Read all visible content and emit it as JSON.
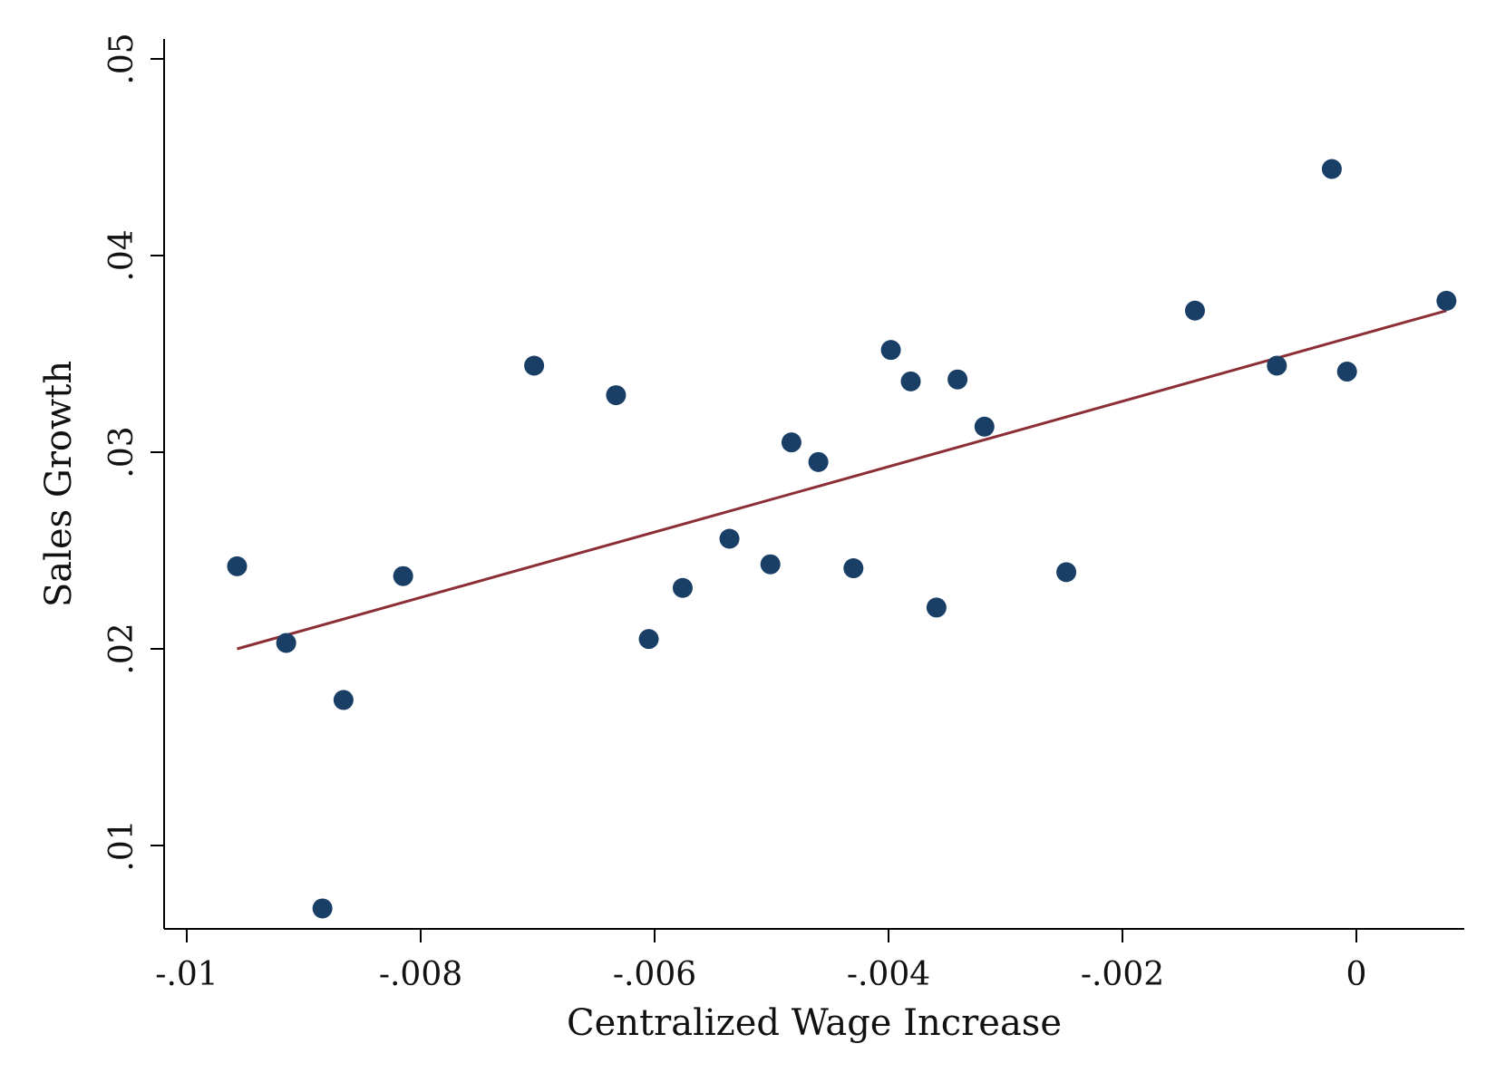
{
  "chart_data": {
    "type": "scatter",
    "title": "",
    "xlabel": "Centralized Wage Increase",
    "ylabel": "Sales Growth",
    "xlim": [
      -0.0105,
      0.0048
    ],
    "ylim": [
      0.0055,
      0.051
    ],
    "xticks": [
      -0.01,
      -0.008,
      -0.006,
      -0.004,
      -0.002,
      0
    ],
    "xtick_labels": [
      "-.01",
      "-.008",
      "-.006",
      "-.004",
      "-.002",
      "0"
    ],
    "yticks": [
      0.01,
      0.02,
      0.03,
      0.04,
      0.05
    ],
    "ytick_labels": [
      ".01",
      ".02",
      ".03",
      ".04",
      ".05"
    ],
    "grid": false,
    "legend": "none",
    "marker_color": "#1a3f66",
    "fit_color": "#8b2e35",
    "points": [
      {
        "x": -0.00957,
        "y": 0.0242
      },
      {
        "x": -0.00915,
        "y": 0.0203
      },
      {
        "x": -0.00884,
        "y": 0.0068
      },
      {
        "x": -0.00866,
        "y": 0.0174
      },
      {
        "x": -0.00815,
        "y": 0.0237
      },
      {
        "x": -0.00703,
        "y": 0.0344
      },
      {
        "x": -0.00633,
        "y": 0.0329
      },
      {
        "x": -0.00605,
        "y": 0.0205
      },
      {
        "x": -0.00576,
        "y": 0.0231
      },
      {
        "x": -0.00536,
        "y": 0.0256
      },
      {
        "x": -0.00501,
        "y": 0.0243
      },
      {
        "x": -0.00483,
        "y": 0.0305
      },
      {
        "x": -0.0046,
        "y": 0.0295
      },
      {
        "x": -0.0043,
        "y": 0.0241
      },
      {
        "x": -0.00398,
        "y": 0.0352
      },
      {
        "x": -0.00381,
        "y": 0.0336
      },
      {
        "x": -0.00359,
        "y": 0.0221
      },
      {
        "x": -0.00341,
        "y": 0.0337
      },
      {
        "x": -0.00318,
        "y": 0.0313
      },
      {
        "x": -0.00248,
        "y": 0.0239
      },
      {
        "x": -0.00138,
        "y": 0.0372
      },
      {
        "x": -0.00068,
        "y": 0.0344
      },
      {
        "x": -0.00021,
        "y": 0.0444
      },
      {
        "x": -8e-05,
        "y": 0.0341
      },
      {
        "x": 0.00077,
        "y": 0.0377
      }
    ],
    "fit_line": {
      "x": [
        -0.00957,
        0.00077
      ],
      "y": [
        0.02,
        0.0372
      ]
    }
  }
}
